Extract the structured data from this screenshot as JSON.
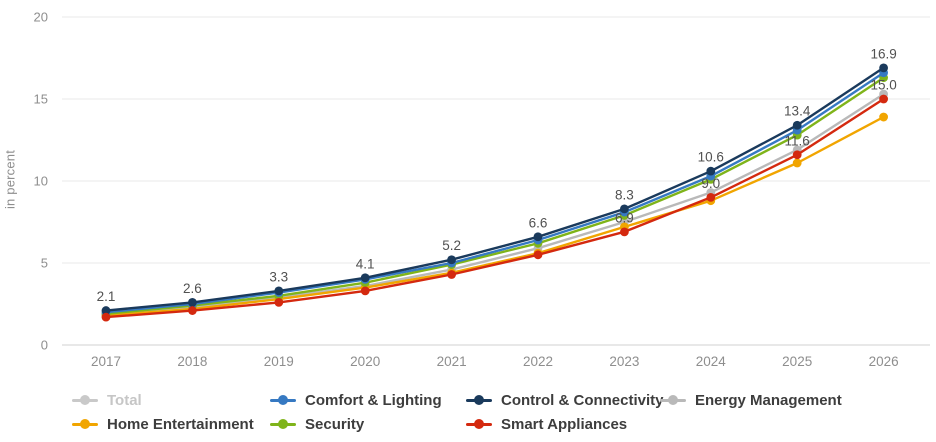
{
  "chart_data": {
    "type": "line",
    "title": "",
    "xlabel": "",
    "ylabel": "in percent",
    "ylim": [
      0,
      20
    ],
    "y_ticks": [
      0,
      5,
      10,
      15,
      20
    ],
    "grid": true,
    "legend_position": "bottom",
    "categories": [
      "2017",
      "2018",
      "2019",
      "2020",
      "2021",
      "2022",
      "2023",
      "2024",
      "2025",
      "2026"
    ],
    "series": [
      {
        "name": "Total",
        "color": "#c9c9c9",
        "visible": false,
        "values": null,
        "point_labels": null
      },
      {
        "name": "Comfort & Lighting",
        "color": "#3679c2",
        "visible": true,
        "values": [
          2.0,
          2.5,
          3.2,
          4.0,
          5.0,
          6.4,
          8.1,
          10.3,
          13.1,
          16.6
        ],
        "point_labels": null
      },
      {
        "name": "Control & Connectivity",
        "color": "#1a3a5c",
        "visible": true,
        "values": [
          2.1,
          2.6,
          3.3,
          4.1,
          5.2,
          6.6,
          8.3,
          10.6,
          13.4,
          16.9
        ],
        "point_labels": [
          "2.1",
          "2.6",
          "3.3",
          "4.1",
          "5.2",
          "6.6",
          "8.3",
          "10.6",
          "13.4",
          "16.9"
        ]
      },
      {
        "name": "Energy Management",
        "color": "#b9b9b9",
        "visible": true,
        "values": [
          1.9,
          2.3,
          2.9,
          3.6,
          4.6,
          5.9,
          7.5,
          9.3,
          11.9,
          15.3
        ],
        "point_labels": null
      },
      {
        "name": "Home Entertainment",
        "color": "#f1a500",
        "visible": true,
        "values": [
          1.8,
          2.2,
          2.8,
          3.5,
          4.4,
          5.6,
          7.2,
          8.8,
          11.1,
          13.9
        ],
        "point_labels": null
      },
      {
        "name": "Security",
        "color": "#7fb41a",
        "visible": true,
        "values": [
          1.9,
          2.4,
          3.0,
          3.8,
          4.9,
          6.2,
          7.9,
          10.1,
          12.8,
          16.3
        ],
        "point_labels": null
      },
      {
        "name": "Smart Appliances",
        "color": "#d4290f",
        "visible": true,
        "values": [
          1.7,
          2.1,
          2.6,
          3.3,
          4.3,
          5.5,
          6.9,
          9.0,
          11.6,
          15.0
        ],
        "point_labels": [
          null,
          null,
          null,
          null,
          null,
          null,
          "6.9",
          "9.0",
          "11.6",
          "15.0"
        ]
      }
    ],
    "legend": {
      "rows": [
        [
          "Total",
          "Comfort & Lighting",
          "Control & Connectivity",
          "Energy Management"
        ],
        [
          "Home Entertainment",
          "Security",
          "Smart Appliances"
        ]
      ]
    },
    "colors": {
      "gridline": "#e9e9e9",
      "axis_line": "#d2d2d2",
      "tick_text": "#8e8e8e",
      "value_label_text": "#515151"
    }
  }
}
